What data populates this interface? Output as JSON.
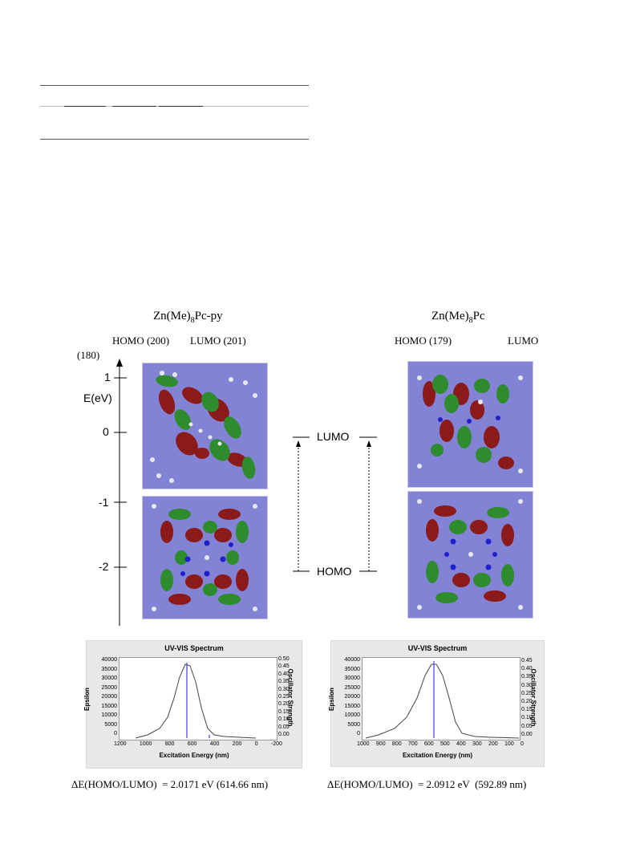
{
  "left": {
    "title_main": "Zn(Me)",
    "title_sub": "8",
    "title_tail": "Pc-py",
    "homo_label": "HOMO (200)",
    "lumo_label": "LUMO (201)",
    "spectrum": {
      "title": "UV-VIS Spectrum",
      "y_label": "Epsilon",
      "y2_label": "Oscillator Strength",
      "x_label": "Excitation Energy (nm)",
      "y_ticks": [
        "40000",
        "35000",
        "30000",
        "25000",
        "20000",
        "15000",
        "10000",
        "5000",
        "0"
      ],
      "y2_ticks": [
        "0.50",
        "0.45",
        "0.40",
        "0.35",
        "0.30",
        "0.25",
        "0.20",
        "0.15",
        "0.10",
        "0.05",
        "0.00"
      ],
      "x_ticks": [
        "1200",
        "1000",
        "800",
        "600",
        "400",
        "200",
        "0",
        "-200"
      ]
    },
    "delta": "ΔE(HOMO/LUMO)  = 2.0171 eV (614.66 nm)"
  },
  "right": {
    "title_main": "Zn(Me)",
    "title_sub": "8",
    "title_tail": "Pc",
    "homo_label": "HOMO (179)",
    "lumo_label": "LUMO",
    "lumo_num": "(180)",
    "spectrum": {
      "title": "UV-VIS Spectrum",
      "y_label": "Epsilon",
      "y2_label": "Oscillator Strength",
      "x_label": "Excitation Energy (nm)",
      "y_ticks": [
        "40000",
        "35000",
        "30000",
        "25000",
        "20000",
        "15000",
        "10000",
        "5000",
        "0"
      ],
      "y2_ticks": [
        "0.45",
        "0.40",
        "0.35",
        "0.30",
        "0.25",
        "0.20",
        "0.15",
        "0.10",
        "0.05",
        "0.00"
      ],
      "x_ticks": [
        "1000",
        "900",
        "800",
        "700",
        "600",
        "500",
        "400",
        "300",
        "200",
        "100",
        "0"
      ]
    },
    "delta": "ΔE(HOMO/LUMO)  = 2.0912 eV  (592.89 nm)"
  },
  "energy_axis": {
    "label": "E(eV)",
    "ticks": [
      "1",
      "0",
      "-1",
      "-2"
    ]
  },
  "level_diagram": {
    "lumo": "LUMO",
    "homo": "HOMO"
  },
  "colors": {
    "orbital_bg": "#8383d6",
    "lobe_red": "#8b1a1a",
    "lobe_green": "#2e8b2e",
    "spectrum_line": "#3a3aff"
  }
}
